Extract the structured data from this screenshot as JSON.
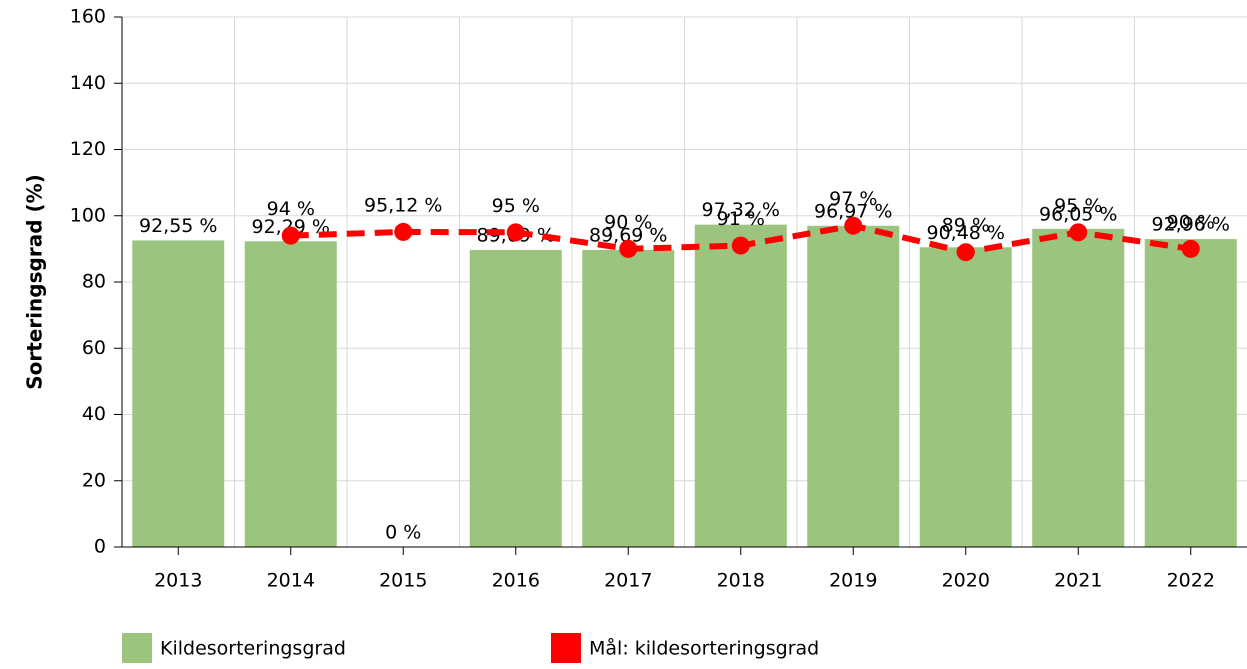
{
  "chart_data": {
    "type": "bar",
    "y_label": "Sorteringsgrad (%)",
    "categories": [
      "2013",
      "2014",
      "2015",
      "2016",
      "2017",
      "2018",
      "2019",
      "2020",
      "2021",
      "2022"
    ],
    "series": [
      {
        "name": "Kildesorteringsgrad",
        "type": "bar",
        "color": "#9bc47f",
        "values": [
          92.55,
          92.29,
          0,
          89.69,
          89.69,
          97.32,
          96.97,
          90.48,
          96.05,
          92.96
        ],
        "value_labels": [
          "92,55 %",
          "92,29 %",
          "0 %",
          "89,69 %",
          "89,69 %",
          "97,32 %",
          "96,97 %",
          "90,48 %",
          "96,05 %",
          "92,96 %"
        ]
      },
      {
        "name": "Mål: kildesorteringsgrad",
        "type": "line",
        "color": "#ff0000",
        "values": [
          null,
          94,
          95.12,
          95,
          90,
          91,
          97,
          89,
          95,
          90
        ],
        "value_labels": [
          null,
          "94 %",
          "95,12 %",
          "95 %",
          "90 %",
          "91 %",
          "97 %",
          "89 %",
          "95 %",
          "90 %"
        ]
      }
    ],
    "ylim": [
      0,
      160
    ],
    "yticks": [
      0,
      20,
      40,
      60,
      80,
      100,
      120,
      140,
      160
    ],
    "grid": true
  }
}
